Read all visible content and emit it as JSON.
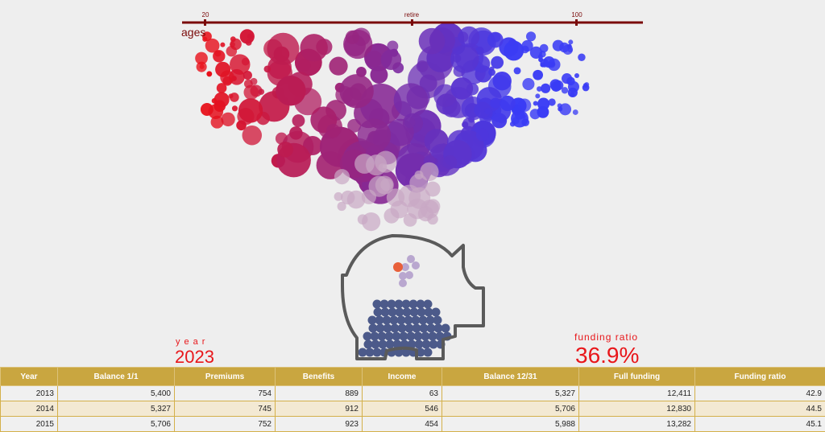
{
  "axis": {
    "title": "ages",
    "ticks": [
      {
        "label": "20"
      },
      {
        "label": "retire"
      },
      {
        "label": "100"
      }
    ],
    "color": "#7a0a0a"
  },
  "year": {
    "caption": "year",
    "value": "2023"
  },
  "funding": {
    "caption": "funding ratio",
    "value": "36.9%"
  },
  "colors": {
    "young": "#e8101a",
    "old": "#3a3cf5",
    "coin": "#4c5a8a",
    "highlight": "#e8603a",
    "pig": "#555555",
    "header": "#c9a640"
  },
  "table": {
    "columns": [
      "Year",
      "Balance 1/1",
      "Premiums",
      "Benefits",
      "Income",
      "Balance 12/31",
      "Full funding",
      "Funding ratio"
    ],
    "rows": [
      [
        "2013",
        "5,400",
        "754",
        "889",
        "63",
        "5,327",
        "12,411",
        "42.9"
      ],
      [
        "2014",
        "5,327",
        "745",
        "912",
        "546",
        "5,706",
        "12,830",
        "44.5"
      ],
      [
        "2015",
        "5,706",
        "752",
        "923",
        "454",
        "5,988",
        "13,282",
        "45.1"
      ]
    ]
  }
}
